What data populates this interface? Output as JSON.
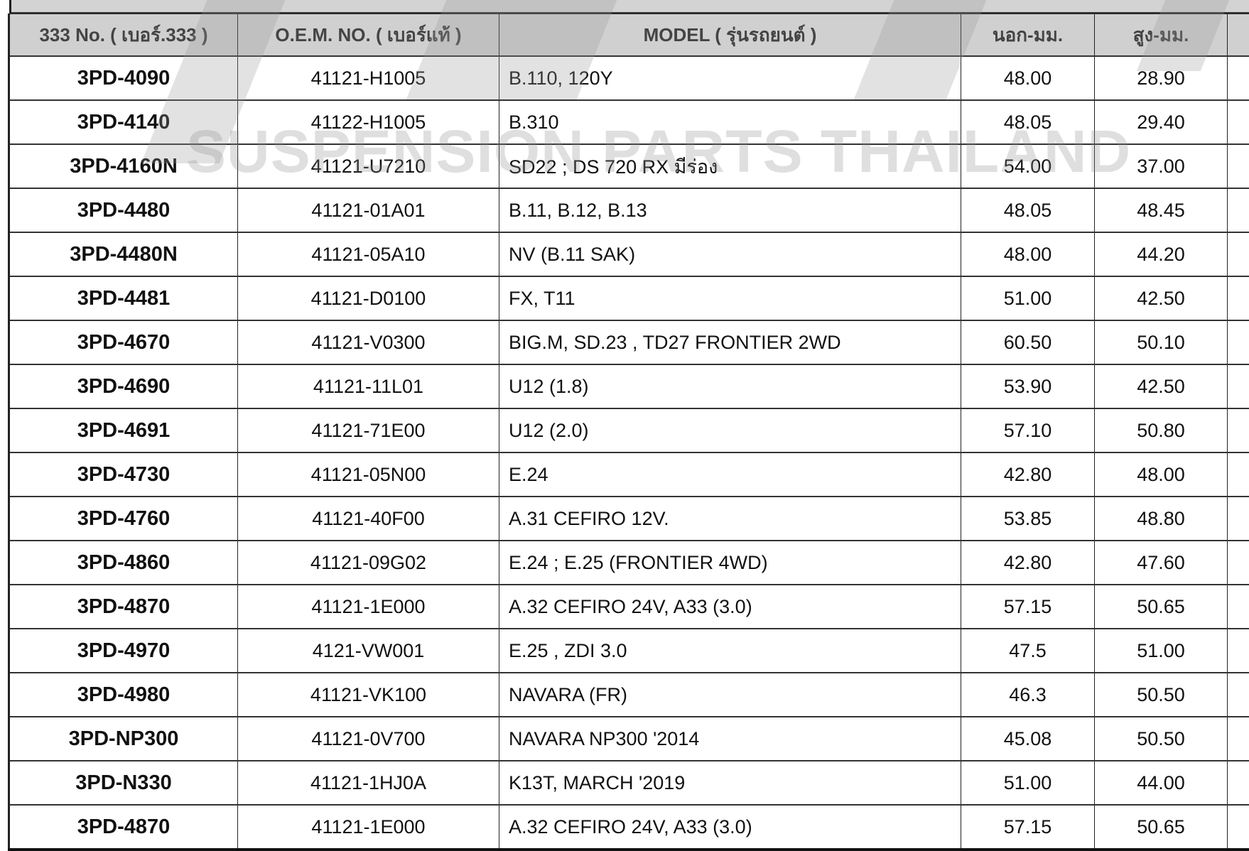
{
  "watermark": "SUSPENSION PARTS THAILAND",
  "table": {
    "headers": [
      "333 No. ( เบอร์.333 )",
      "O.E.M.  NO. ( เบอร์แท้ )",
      "MODEL  ( รุ่นรถยนต์ )",
      "นอก-มม.",
      "สูง-มม.",
      ""
    ],
    "rows": [
      [
        "3PD-4090",
        "41121-H1005",
        "B.110, 120Y",
        "48.00",
        "28.90"
      ],
      [
        "3PD-4140",
        "41122-H1005",
        "B.310",
        "48.05",
        "29.40"
      ],
      [
        "3PD-4160N",
        "41121-U7210",
        "SD22 ; DS 720 RX มีร่อง",
        "54.00",
        "37.00"
      ],
      [
        "3PD-4480",
        "41121-01A01",
        "B.11, B.12, B.13",
        "48.05",
        "48.45"
      ],
      [
        "3PD-4480N",
        "41121-05A10",
        "NV (B.11 SAK)",
        "48.00",
        "44.20"
      ],
      [
        "3PD-4481",
        "41121-D0100",
        "FX, T11",
        "51.00",
        "42.50"
      ],
      [
        "3PD-4670",
        "41121-V0300",
        "BIG.M, SD.23 , TD27 FRONTIER 2WD",
        "60.50",
        "50.10"
      ],
      [
        "3PD-4690",
        "41121-11L01",
        "U12 (1.8)",
        "53.90",
        "42.50"
      ],
      [
        "3PD-4691",
        "41121-71E00",
        "U12 (2.0)",
        "57.10",
        "50.80"
      ],
      [
        "3PD-4730",
        "41121-05N00",
        "E.24",
        "42.80",
        "48.00"
      ],
      [
        "3PD-4760",
        "41121-40F00",
        "A.31 CEFIRO 12V.",
        "53.85",
        "48.80"
      ],
      [
        "3PD-4860",
        "41121-09G02",
        "E.24 ; E.25 (FRONTIER 4WD)",
        "42.80",
        "47.60"
      ],
      [
        "3PD-4870",
        "41121-1E000",
        "A.32 CEFIRO 24V, A33 (3.0)",
        "57.15",
        "50.65"
      ],
      [
        "3PD-4970",
        "4121-VW001",
        "E.25 , ZDI 3.0",
        "47.5",
        "51.00"
      ],
      [
        "3PD-4980",
        "41121-VK100",
        "NAVARA (FR)",
        "46.3",
        "50.50"
      ],
      [
        "3PD-NP300",
        "41121-0V700",
        "NAVARA NP300 '2014",
        "45.08",
        "50.50"
      ],
      [
        "3PD-N330",
        "41121-1HJ0A",
        "K13T, MARCH '2019",
        "51.00",
        "44.00"
      ],
      [
        "3PD-4870",
        "41121-1E000",
        "A.32 CEFIRO 24V, A33 (3.0)",
        "57.15",
        "50.65"
      ]
    ]
  }
}
